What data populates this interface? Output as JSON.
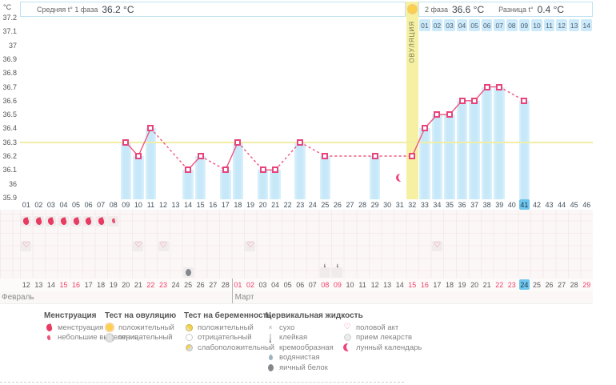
{
  "colors": {
    "chart_bg": "#87d1ef",
    "bar": "#c9e9f9",
    "band": "#f6f1a2",
    "line": "#f2557f",
    "coverline": "#f0eda4",
    "highlight": "#6fc6ee",
    "red": "#ee4268"
  },
  "header": {
    "avg_label": "Средняя t° 1 фаза",
    "avg_value": "36.2 °C",
    "phase2_label": "2 фаза",
    "phase2_value": "36.6 °C",
    "diff_label": "Разница t°",
    "diff_value": "0.4 °C"
  },
  "axis": {
    "unit": "°C",
    "ticks": [
      "37.2",
      "37.1",
      "37",
      "36.9",
      "36.8",
      "36.7",
      "36.6",
      "36.5",
      "36.4",
      "36.3",
      "36.2",
      "36.1",
      "36",
      "35.9"
    ]
  },
  "chart_data": {
    "type": "line",
    "ylabel": "°C",
    "ylim": [
      35.9,
      37.2
    ],
    "ystep": 0.1,
    "coverline": 36.3,
    "ovulation": {
      "day": 32,
      "label": "ОВУЛЯЦИЯ"
    },
    "cycle_length_shown": 46,
    "day_labels": [
      "01",
      "02",
      "03",
      "04",
      "05",
      "06",
      "07",
      "08",
      "09",
      "10",
      "11",
      "12",
      "13",
      "14",
      "15",
      "16",
      "17",
      "18",
      "19",
      "20",
      "21",
      "22",
      "23",
      "24",
      "25",
      "26",
      "27",
      "28",
      "29",
      "30",
      "31",
      "32",
      "33",
      "34",
      "35",
      "36",
      "37",
      "38",
      "39",
      "40",
      "41",
      "42",
      "43",
      "44",
      "45",
      "46"
    ],
    "dpo_labels": [
      "01",
      "02",
      "03",
      "04",
      "05",
      "06",
      "07",
      "08",
      "09",
      "10",
      "11",
      "12",
      "13",
      "14"
    ],
    "temps": {
      "9": 36.3,
      "10": 36.2,
      "11": 36.4,
      "14": 36.1,
      "15": 36.2,
      "17": 36.1,
      "18": 36.3,
      "20": 36.1,
      "21": 36.1,
      "23": 36.3,
      "25": 36.2,
      "29": 36.2,
      "32": 36.2,
      "33": 36.4,
      "34": 36.5,
      "35": 36.5,
      "36": 36.6,
      "37": 36.6,
      "38": 36.7,
      "39": 36.7,
      "41": 36.6
    },
    "phase1_avg": 36.2,
    "phase2_avg": 36.6,
    "difference": 0.4,
    "lunar_day": 31
  },
  "events": {
    "menstruation_days": [
      1,
      2,
      3,
      4,
      5,
      6,
      7
    ],
    "spotting_days": [
      8
    ],
    "intercourse_days": [
      1,
      10,
      12,
      19,
      34
    ],
    "eggwhite_days": [
      14
    ],
    "creamy_days": [
      25,
      26
    ]
  },
  "dates": {
    "labels": [
      "12",
      "13",
      "14",
      "15",
      "16",
      "17",
      "18",
      "19",
      "20",
      "21",
      "22",
      "23",
      "24",
      "25",
      "26",
      "27",
      "28",
      "01",
      "02",
      "03",
      "04",
      "05",
      "06",
      "07",
      "08",
      "09",
      "10",
      "11",
      "12",
      "13",
      "14",
      "15",
      "16",
      "17",
      "18",
      "19",
      "20",
      "21",
      "22",
      "23",
      "24",
      "25",
      "26",
      "27",
      "28",
      "29"
    ],
    "red_cycle_days": [
      4,
      5,
      11,
      12,
      18,
      19,
      25,
      26,
      32,
      33,
      39,
      40,
      46
    ],
    "today_cycle_day": 41,
    "months": [
      {
        "name": "Февраль",
        "start_day": 1
      },
      {
        "name": "Март",
        "start_day": 18
      }
    ]
  },
  "legend": {
    "sections": [
      {
        "title": "Менструация",
        "items": [
          {
            "icon": "drop-large",
            "label": "менструация"
          },
          {
            "icon": "drop-small",
            "label": "небольшие выделения"
          }
        ]
      },
      {
        "title": "Тест на овуляцию",
        "items": [
          {
            "icon": "sun-positive",
            "label": "положительный"
          },
          {
            "icon": "circle-negative",
            "label": "отрицательный"
          }
        ]
      },
      {
        "title": "Тест на беременность",
        "items": [
          {
            "icon": "preg-positive",
            "label": "положительный"
          },
          {
            "icon": "preg-negative",
            "label": "отрицательный"
          },
          {
            "icon": "preg-weak",
            "label": "слабоположительный"
          }
        ]
      },
      {
        "title": "Цервикальная жидкость",
        "items": [
          {
            "icon": "dry-x",
            "label": "сухо"
          },
          {
            "icon": "sticky-t",
            "label": "клейкая"
          },
          {
            "icon": "creamy-comma",
            "label": "кремообразная"
          },
          {
            "icon": "watery-drop",
            "label": "водянистая"
          },
          {
            "icon": "eggwhite-oval",
            "label": "яичный белок"
          }
        ]
      },
      {
        "title": "",
        "items": [
          {
            "icon": "heart",
            "label": "половой акт"
          },
          {
            "icon": "pill",
            "label": "прием лекарств"
          },
          {
            "icon": "moon-crescent",
            "label": "лунный календарь"
          }
        ]
      }
    ]
  }
}
